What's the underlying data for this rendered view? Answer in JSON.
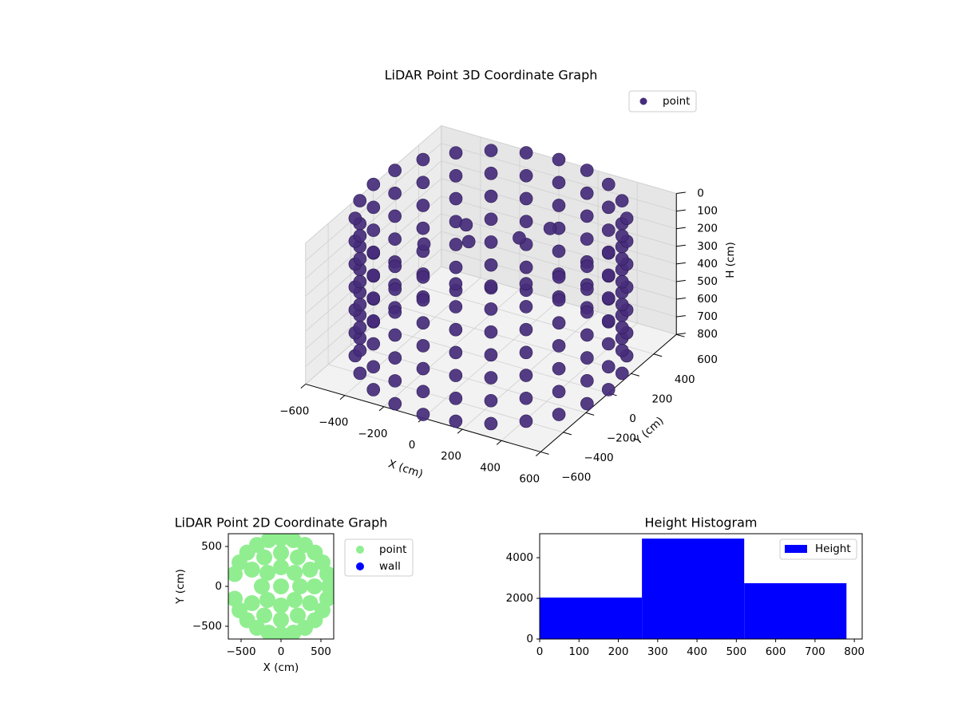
{
  "chart_data": [
    {
      "type": "scatter3d",
      "title": "LiDAR Point 3D Coordinate Graph",
      "xlabel": "X (cm)",
      "ylabel": "Y (cm)",
      "zlabel": "H (cm)",
      "xlim": [
        -600,
        600
      ],
      "ylim": [
        -600,
        600
      ],
      "zlim": [
        800,
        0
      ],
      "xticks": [
        {
          "value": -600,
          "label": "−600"
        },
        {
          "value": -400,
          "label": "−400"
        },
        {
          "value": -200,
          "label": "−200"
        },
        0,
        200,
        400,
        600
      ],
      "yticks": [
        {
          "value": -600,
          "label": "−600"
        },
        {
          "value": -400,
          "label": "−400"
        },
        {
          "value": -200,
          "label": "−200"
        },
        0,
        200,
        400,
        600
      ],
      "zticks": [
        0,
        100,
        200,
        300,
        400,
        500,
        600,
        700,
        800
      ],
      "grid": true,
      "series": [
        {
          "name": "point",
          "color": "#472d7b",
          "x": [
            600,
            580,
            520,
            424,
            300,
            155,
            0,
            -155,
            -300,
            -424,
            -520,
            -580,
            -600,
            -580,
            -520,
            -424,
            -300,
            -155,
            0,
            155,
            300,
            424,
            520,
            580,
            600,
            580,
            520,
            424,
            300,
            155,
            0,
            -155,
            -300,
            -424,
            -520,
            -580,
            -600,
            -580,
            -520,
            -424,
            -300,
            -155,
            0,
            155,
            300,
            424,
            520,
            580,
            600,
            580,
            520,
            424,
            300,
            155,
            0,
            -155,
            -300,
            -424,
            -520,
            -580,
            -600,
            -580,
            -520,
            -424,
            -300,
            -155,
            0,
            155,
            300,
            424,
            520,
            580,
            600,
            580,
            520,
            424,
            300,
            155,
            0,
            -155,
            -300,
            -424,
            -520,
            -580,
            -600,
            -580,
            -520,
            -424,
            -300,
            -155,
            0,
            155,
            300,
            424,
            520,
            580,
            600,
            580,
            520,
            424,
            300,
            155,
            0,
            -155,
            -300,
            -424,
            -520,
            -580,
            -600,
            -580,
            -520,
            -424,
            -300,
            -155,
            0,
            155,
            300,
            424,
            520,
            580,
            600,
            580,
            520,
            424,
            300,
            155,
            0,
            -155,
            -300,
            -424,
            -520,
            -580,
            -600,
            -580,
            -520,
            -424,
            -300,
            -155,
            0,
            155,
            300,
            424,
            520,
            580,
            600,
            580,
            520,
            424,
            300,
            155,
            0,
            -155,
            -300,
            -424,
            -520,
            -580,
            -600,
            -580,
            -520,
            -424,
            -300,
            -155,
            0,
            155,
            300,
            424,
            520,
            580,
            -300,
            -200,
            0,
            100,
            -400
          ],
          "y": [
            0,
            155,
            300,
            424,
            520,
            580,
            600,
            580,
            520,
            424,
            300,
            155,
            0,
            -155,
            -300,
            -424,
            -520,
            -580,
            -600,
            -580,
            -520,
            -424,
            -300,
            -155,
            0,
            155,
            300,
            424,
            520,
            580,
            600,
            580,
            520,
            424,
            300,
            155,
            0,
            -155,
            -300,
            -424,
            -520,
            -580,
            -600,
            -580,
            -520,
            -424,
            -300,
            -155,
            0,
            155,
            300,
            424,
            520,
            580,
            600,
            580,
            520,
            424,
            300,
            155,
            0,
            -155,
            -300,
            -424,
            -520,
            -580,
            -600,
            -580,
            -520,
            -424,
            -300,
            -155,
            0,
            155,
            300,
            424,
            520,
            580,
            600,
            580,
            520,
            424,
            300,
            155,
            0,
            -155,
            -300,
            -424,
            -520,
            -580,
            -600,
            -580,
            -520,
            -424,
            -300,
            -155,
            0,
            155,
            300,
            424,
            520,
            580,
            600,
            580,
            520,
            424,
            300,
            155,
            0,
            -155,
            -300,
            -424,
            -520,
            -580,
            -600,
            -580,
            -520,
            -424,
            -300,
            -155,
            0,
            155,
            300,
            424,
            520,
            580,
            600,
            580,
            520,
            424,
            300,
            155,
            0,
            -155,
            -300,
            -424,
            -520,
            -580,
            -600,
            -580,
            -520,
            -424,
            -300,
            -155,
            0,
            155,
            300,
            424,
            520,
            580,
            600,
            580,
            520,
            424,
            300,
            155,
            0,
            -155,
            -300,
            -424,
            -520,
            -580,
            -600,
            -580,
            -520,
            -424,
            -300,
            -155,
            300,
            150,
            250,
            350,
            100
          ],
          "z": [
            0,
            0,
            0,
            0,
            0,
            0,
            0,
            0,
            0,
            0,
            0,
            0,
            0,
            0,
            0,
            0,
            0,
            0,
            0,
            0,
            0,
            0,
            0,
            0,
            130,
            130,
            130,
            130,
            130,
            130,
            130,
            130,
            130,
            130,
            130,
            130,
            130,
            130,
            130,
            130,
            130,
            130,
            130,
            130,
            130,
            130,
            130,
            130,
            260,
            260,
            260,
            260,
            260,
            260,
            260,
            260,
            260,
            260,
            260,
            260,
            260,
            260,
            260,
            260,
            260,
            260,
            260,
            260,
            260,
            260,
            260,
            260,
            390,
            390,
            390,
            390,
            390,
            390,
            390,
            390,
            390,
            390,
            390,
            390,
            390,
            390,
            390,
            390,
            390,
            390,
            390,
            390,
            390,
            390,
            390,
            390,
            520,
            520,
            520,
            520,
            520,
            520,
            520,
            520,
            520,
            520,
            520,
            520,
            520,
            520,
            520,
            520,
            520,
            520,
            520,
            520,
            520,
            520,
            520,
            520,
            650,
            650,
            650,
            650,
            650,
            650,
            650,
            650,
            650,
            650,
            650,
            650,
            650,
            650,
            650,
            650,
            650,
            650,
            650,
            650,
            650,
            650,
            650,
            650,
            780,
            780,
            780,
            780,
            780,
            780,
            780,
            780,
            780,
            780,
            780,
            780,
            780,
            780,
            780,
            780,
            780,
            780,
            780,
            780,
            780,
            780,
            780,
            780,
            300,
            280,
            250,
            220,
            330
          ]
        }
      ]
    },
    {
      "type": "scatter",
      "title": "LiDAR Point 2D Coordinate Graph",
      "xlabel": "X (cm)",
      "ylabel": "Y (cm)",
      "xlim": [
        -660,
        660
      ],
      "ylim": [
        -660,
        660
      ],
      "xticks": [
        {
          "value": -500,
          "label": "−500"
        },
        0,
        500
      ],
      "yticks": [
        {
          "value": -500,
          "label": "−500"
        },
        0,
        500
      ],
      "series": [
        {
          "name": "point",
          "color": "#90ee90",
          "x": [
            600,
            580,
            520,
            424,
            300,
            155,
            0,
            -155,
            -300,
            -424,
            -520,
            -580,
            -580,
            -520,
            -424,
            -300,
            -155,
            0,
            155,
            300,
            424,
            520,
            580,
            420,
            364,
            210,
            0,
            -210,
            -364,
            -364,
            -210,
            0,
            210,
            364,
            240,
            170,
            0,
            -170,
            -240,
            -170,
            0,
            170,
            0
          ],
          "y": [
            0,
            155,
            300,
            424,
            520,
            580,
            600,
            580,
            520,
            424,
            300,
            155,
            -155,
            -300,
            -424,
            -520,
            -580,
            -600,
            -580,
            -520,
            -424,
            -300,
            -155,
            0,
            210,
            364,
            420,
            364,
            210,
            -210,
            -364,
            -420,
            -364,
            -210,
            0,
            170,
            240,
            170,
            0,
            -170,
            -240,
            -170,
            0
          ]
        },
        {
          "name": "wall",
          "color": "#0000ff",
          "x": [],
          "y": []
        }
      ]
    },
    {
      "type": "histogram",
      "title": "Height Histogram",
      "xlim": [
        0,
        820
      ],
      "ylim": [
        0,
        5180
      ],
      "xticks": [
        0,
        100,
        200,
        300,
        400,
        500,
        600,
        700,
        800
      ],
      "yticks": [
        0,
        2000,
        4000
      ],
      "bins": [
        0,
        260,
        520,
        780
      ],
      "series": [
        {
          "name": "Height",
          "color": "#0000ff",
          "values": [
            2040,
            4940,
            2745
          ]
        }
      ]
    }
  ]
}
